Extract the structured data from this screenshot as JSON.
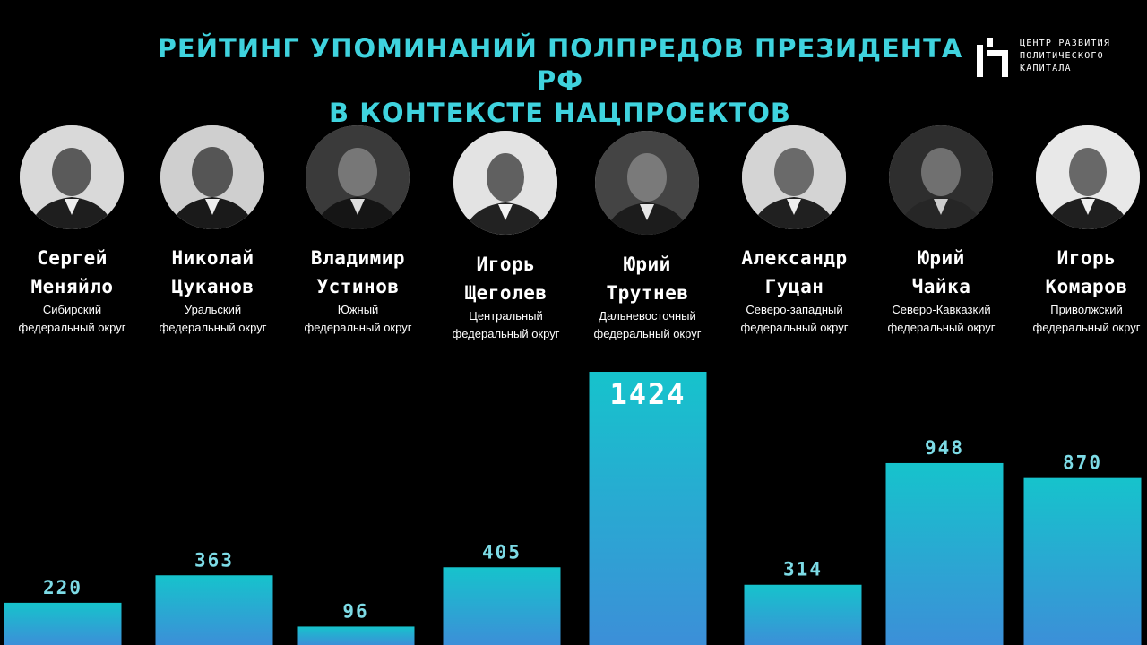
{
  "header": {
    "title_line1": "РЕЙТИНГ УПОМИНАНИЙ ПОЛПРЕДОВ ПРЕЗИДЕНТА РФ",
    "title_line2": "В КОНТЕКСТЕ НАЦПРОЕКТОВ"
  },
  "logo": {
    "line1": "ЦЕНТР РАЗВИТИЯ",
    "line2": "ПОЛИТИЧЕСКОГО",
    "line3": "КАПИТАЛА"
  },
  "people": [
    {
      "first": "Сергей",
      "last": "Меняйло",
      "district1": "Сибирский",
      "district2": "федеральный округ"
    },
    {
      "first": "Николай",
      "last": "Цуканов",
      "district1": "Уральский",
      "district2": "федеральный округ"
    },
    {
      "first": "Владимир",
      "last": "Устинов",
      "district1": "Южный",
      "district2": "федеральный округ"
    },
    {
      "first": "Игорь",
      "last": "Щеголев",
      "district1": "Центральный",
      "district2": "федеральный округ"
    },
    {
      "first": "Юрий",
      "last": "Трутнев",
      "district1": "Дальневосточный",
      "district2": "федеральный округ"
    },
    {
      "first": "Александр",
      "last": "Гуцан",
      "district1": "Северо-западный",
      "district2": "федеральный округ"
    },
    {
      "first": "Юрий",
      "last": "Чайка",
      "district1": "Северо-Кавказкий",
      "district2": "федеральный округ"
    },
    {
      "first": "Игорь",
      "last": "Комаров",
      "district1": "Приволжский",
      "district2": "федеральный округ"
    }
  ],
  "colors": {
    "title": "#3fd3de",
    "bar_top": "#16c3cc",
    "bar_bottom": "#3c8fd8",
    "label": "#7ddbe6",
    "background": "#000000"
  },
  "chart_data": {
    "type": "bar",
    "categories": [
      "Сергей Меняйло",
      "Николай Цуканов",
      "Владимир Устинов",
      "Игорь Щеголев",
      "Юрий Трутнев",
      "Александр Гуцан",
      "Юрий Чайка",
      "Игорь Комаров"
    ],
    "values": [
      220,
      363,
      96,
      405,
      1424,
      314,
      948,
      870
    ],
    "title": "РЕЙТИНГ УПОМИНАНИЙ ПОЛПРЕДОВ ПРЕЗИДЕНТА РФ В КОНТЕКСТЕ НАЦПРОЕКТОВ",
    "xlabel": "",
    "ylabel": "",
    "grid": false,
    "legend": "none"
  }
}
